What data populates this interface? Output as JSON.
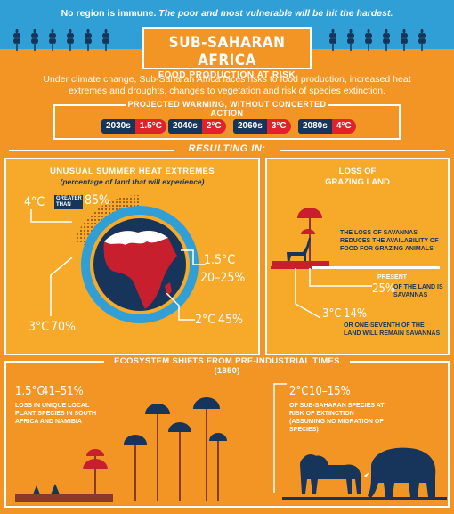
{
  "banner": {
    "lead": "No region is immune.",
    "emphasis": "The poor and most vulnerable will be hit the hardest."
  },
  "title": {
    "main": "SUB-SAHARAN AFRICA",
    "sub": "FOOD PRODUCTION AT RISK"
  },
  "intro": "Under climate change, Sub-Saharan Africa faces risks to food production, increased heat extremes and droughts, changes to vegetation and risk of species extinction.",
  "projection": {
    "heading": "PROJECTED WARMING, WITHOUT CONCERTED ACTION",
    "items": [
      {
        "decade": "2030s",
        "temp": "1.5°C"
      },
      {
        "decade": "2040s",
        "temp": "2°C"
      },
      {
        "decade": "2060s",
        "temp": "3°C"
      },
      {
        "decade": "2080s",
        "temp": "4°C"
      }
    ]
  },
  "resulting": "RESULTING IN:",
  "heat": {
    "heading": "UNUSUAL SUMMER HEAT EXTREMES",
    "subheading": "(percentage of land that will experience)",
    "t4": "4°C",
    "greater": "GREATER THAN",
    "p85": "85%",
    "t15": "1.5°C",
    "p15": "20–25%",
    "t2": "2°C",
    "p2": "45%",
    "t3": "3°C",
    "p3": "70%",
    "colors": {
      "ring": "#2f9fd6",
      "map": "#c71f2d",
      "globe": "#17355a",
      "snow": "#ffffff"
    }
  },
  "grazing": {
    "heading1": "LOSS OF",
    "heading2": "GRAZING LAND",
    "desc": "THE LOSS OF SAVANNAS REDUCES THE AVAILABILITY OF FOOD FOR GRAZING ANIMALS",
    "present": "PRESENT",
    "p25": "25%",
    "p25desc": "OF THE LAND IS SAVANNAS",
    "t3": "3°C",
    "p14": "14%",
    "p14desc": "OR ONE-SEVENTH OF THE LAND WILL REMAIN SAVANNAS"
  },
  "eco": {
    "heading": "ECOSYSTEM SHIFTS FROM PRE-INDUSTRIAL TIMES (1850)",
    "left_temp": "1.5°C",
    "left_pct": "41–51%",
    "left_desc": "LOSS IN UNIQUE LOCAL PLANT SPECIES IN SOUTH AFRICA AND NAMIBIA",
    "right_temp": "2°C",
    "right_pct": "10–15%",
    "right_desc": "OF SUB-SAHARAN SPECIES AT RISK OF EXTINCTION (ASSUMING NO MIGRATION OF SPECIES)"
  }
}
